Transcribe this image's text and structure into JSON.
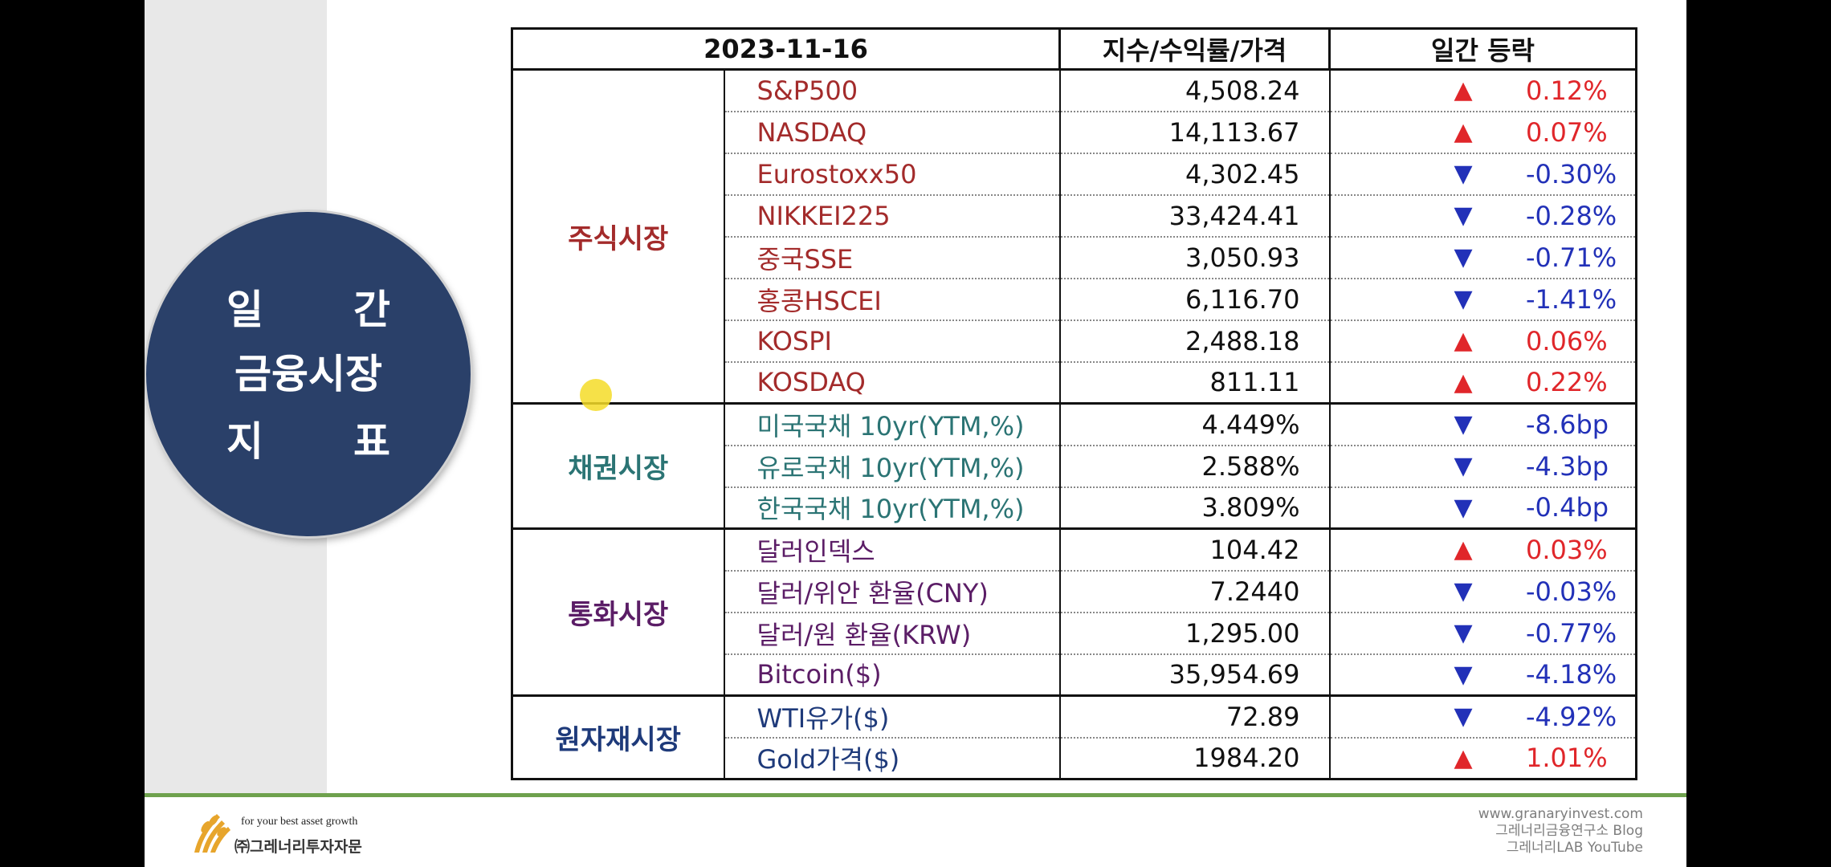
{
  "title": {
    "line1": [
      "일",
      "간"
    ],
    "line2": "금융시장",
    "line3": [
      "지",
      "표"
    ]
  },
  "table": {
    "headers": [
      "2023-11-16",
      "지수/수익률/가격",
      "일간 등락"
    ],
    "groups": [
      {
        "category": "주식시장",
        "color": "#a32b2b",
        "rows": [
          {
            "name": "S&P500",
            "value": "4,508.24",
            "direction": "up",
            "change": "0.12%"
          },
          {
            "name": "NASDAQ",
            "value": "14,113.67",
            "direction": "up",
            "change": "0.07%"
          },
          {
            "name": "Eurostoxx50",
            "value": "4,302.45",
            "direction": "down",
            "change": "-0.30%"
          },
          {
            "name": "NIKKEI225",
            "value": "33,424.41",
            "direction": "down",
            "change": "-0.28%"
          },
          {
            "name": "중국SSE",
            "value": "3,050.93",
            "direction": "down",
            "change": "-0.71%"
          },
          {
            "name": "홍콩HSCEI",
            "value": "6,116.70",
            "direction": "down",
            "change": "-1.41%"
          },
          {
            "name": "KOSPI",
            "value": "2,488.18",
            "direction": "up",
            "change": "0.06%"
          },
          {
            "name": "KOSDAQ",
            "value": "811.11",
            "direction": "up",
            "change": "0.22%"
          }
        ]
      },
      {
        "category": "채권시장",
        "color": "#2b7474",
        "rows": [
          {
            "name": "미국국채 10yr(YTM,%)",
            "value": "4.449%",
            "direction": "down",
            "change": "-8.6bp"
          },
          {
            "name": "유로국채 10yr(YTM,%)",
            "value": "2.588%",
            "direction": "down",
            "change": "-4.3bp"
          },
          {
            "name": "한국국채 10yr(YTM,%)",
            "value": "3.809%",
            "direction": "down",
            "change": "-0.4bp"
          }
        ]
      },
      {
        "category": "통화시장",
        "color": "#5b1d66",
        "rows": [
          {
            "name": "달러인덱스",
            "value": "104.42",
            "direction": "up",
            "change": "0.03%"
          },
          {
            "name": "달러/위안 환율(CNY)",
            "value": "7.2440",
            "direction": "down",
            "change": "-0.03%"
          },
          {
            "name": "달러/원 환율(KRW)",
            "value": "1,295.00",
            "direction": "down",
            "change": "-0.77%"
          },
          {
            "name": "Bitcoin($)",
            "value": "35,954.69",
            "direction": "down",
            "change": "-4.18%"
          }
        ]
      },
      {
        "category": "원자재시장",
        "color": "#1e3a7a",
        "rows": [
          {
            "name": "WTI유가($)",
            "value": "72.89",
            "direction": "down",
            "change": "-4.92%"
          },
          {
            "name": "Gold가격($)",
            "value": "1984.20",
            "direction": "up",
            "change": "1.01%"
          }
        ]
      }
    ],
    "arrows": {
      "up": "▲",
      "down": "▼"
    },
    "colors": {
      "up": "#e0262a",
      "down": "#2231b8"
    }
  },
  "footer": {
    "tagline": "for your best asset growth",
    "company": "㈜그레너리투자자문",
    "links": [
      "www.granaryinvest.com",
      "그레너리금융연구소 Blog",
      "그레너리LAB YouTube"
    ],
    "accent": "#6ea14d"
  }
}
